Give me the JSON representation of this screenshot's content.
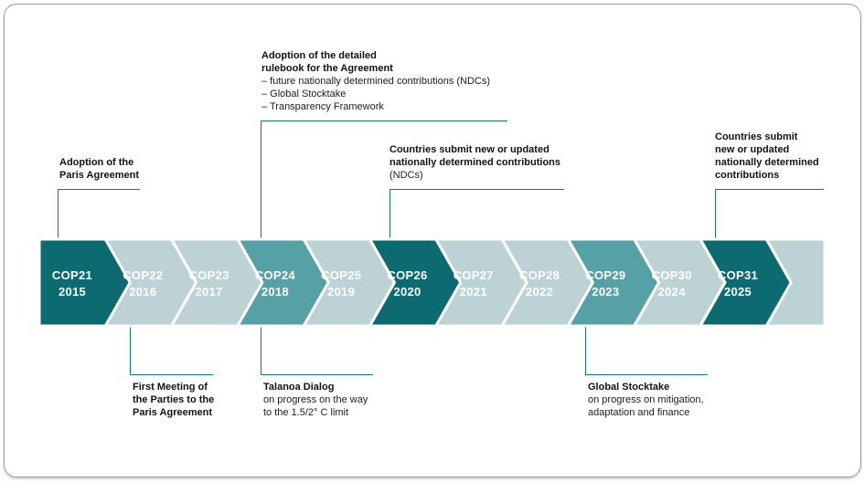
{
  "colors": {
    "dark": "#0c6b70",
    "medium": "#55a1a6",
    "light": "#bdd2d5",
    "gap": "#ffffff",
    "connector": "#1b7278"
  },
  "timeline": {
    "cops": [
      {
        "name": "COP21",
        "year": "2015",
        "shade": "dark"
      },
      {
        "name": "COP22",
        "year": "2016",
        "shade": "light"
      },
      {
        "name": "COP23",
        "year": "2017",
        "shade": "light"
      },
      {
        "name": "COP24",
        "year": "2018",
        "shade": "medium"
      },
      {
        "name": "COP25",
        "year": "2019",
        "shade": "light"
      },
      {
        "name": "COP26",
        "year": "2020",
        "shade": "dark"
      },
      {
        "name": "COP27",
        "year": "2021",
        "shade": "light"
      },
      {
        "name": "COP28",
        "year": "2022",
        "shade": "light"
      },
      {
        "name": "COP29",
        "year": "2023",
        "shade": "medium"
      },
      {
        "name": "COP30",
        "year": "2024",
        "shade": "light"
      },
      {
        "name": "COP31",
        "year": "2025",
        "shade": "dark"
      }
    ],
    "trailing_shade": "light"
  },
  "annotations": {
    "paris": {
      "title": "Adoption of the\nParis Agreement",
      "body": ""
    },
    "rulebook": {
      "title": "Adoption of the detailed\nrulebook for the Agreement",
      "body": "–  future nationally determined contributions (NDCs)\n–  Global Stocktake\n–  Transparency Framework"
    },
    "ndc2020": {
      "title": "Countries submit new or updated\nnationally determined contributions",
      "body": "(NDCs)"
    },
    "ndc2025": {
      "title": "Countries submit\nnew or updated\nnationally determined\ncontributions",
      "body": ""
    },
    "first_meeting": {
      "title": "First Meeting of\nthe Parties to the\nParis Agreement",
      "body": ""
    },
    "talanoa": {
      "title": "Talanoa Dialog",
      "body": "on progress on the way\nto the 1.5/2° C limit"
    },
    "stocktake": {
      "title": "Global Stocktake",
      "body": "on progress on mitigation,\nadaptation and finance"
    }
  }
}
